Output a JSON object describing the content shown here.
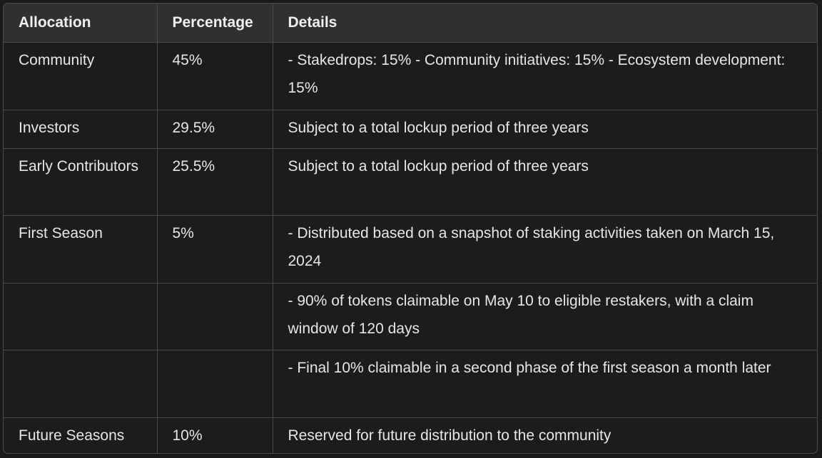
{
  "table": {
    "headers": [
      "Allocation",
      "Percentage",
      "Details"
    ],
    "rows": [
      {
        "allocation": "Community",
        "percentage": "45%",
        "details": "- Stakedrops: 15% - Community initiatives: 15% - Ecosystem development: 15%"
      },
      {
        "allocation": "Investors",
        "percentage": "29.5%",
        "details": "Subject to a total lockup period of three years"
      },
      {
        "allocation": "Early Contributors",
        "percentage": "25.5%",
        "details": "Subject to a total lockup period of three years"
      },
      {
        "allocation": "First Season",
        "percentage": "5%",
        "details": "- Distributed based on a snapshot of staking activities taken on March 15, 2024"
      },
      {
        "allocation": "",
        "percentage": "",
        "details": "- 90% of tokens claimable on May 10 to eligible restakers, with a claim window of 120 days"
      },
      {
        "allocation": "",
        "percentage": "",
        "details": "- Final 10% claimable in a second phase of the first season a month later"
      },
      {
        "allocation": "Future Seasons",
        "percentage": "10%",
        "details": "Reserved for future distribution to the community"
      }
    ]
  },
  "colors": {
    "background": "#1c1c1c",
    "header_background": "#303030",
    "border": "#4a4a4a",
    "text": "#e6e6e6"
  }
}
